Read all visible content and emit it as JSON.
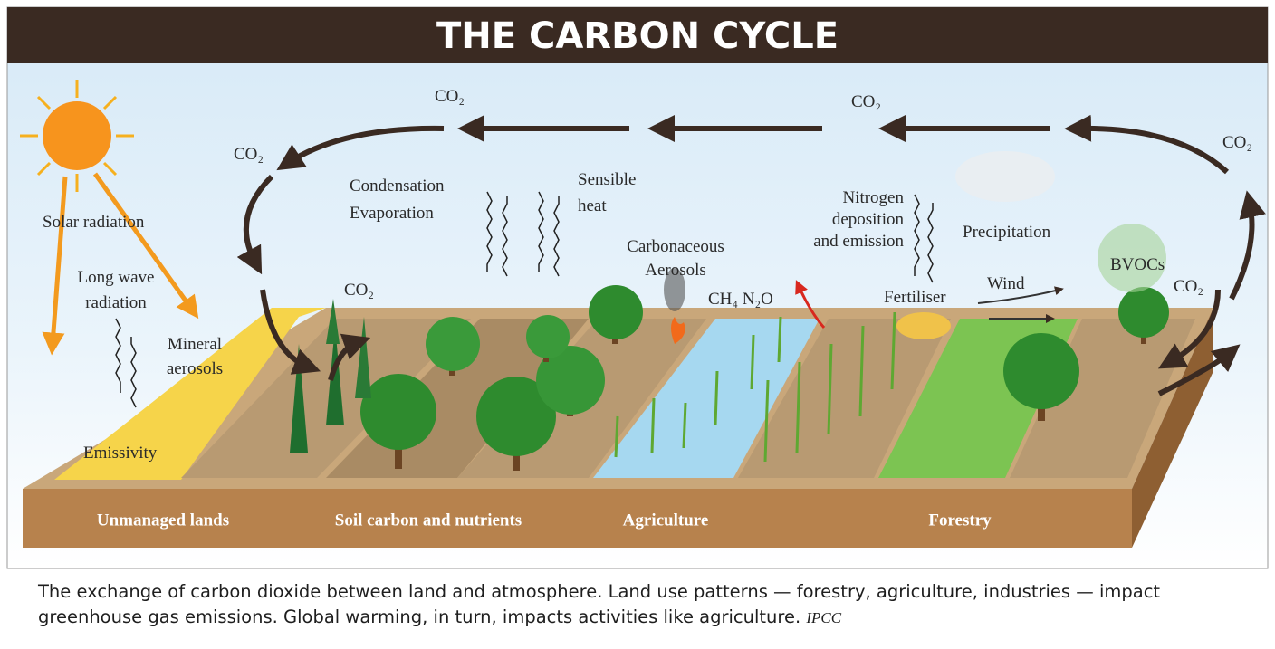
{
  "header": {
    "title": "THE CARBON CYCLE"
  },
  "labels": [
    {
      "lines": [
        "CO₂"
      ]
    },
    {
      "lines": [
        "CO₂"
      ]
    },
    {
      "lines": [
        "CO₂"
      ]
    },
    {
      "lines": [
        "CO₂"
      ]
    },
    {
      "lines": [
        "CO₂"
      ]
    },
    {
      "lines": [
        "CO₂"
      ]
    },
    {
      "lines": [
        "Solar radiation"
      ]
    },
    {
      "lines": [
        "Long wave",
        "radiation"
      ]
    },
    {
      "lines": [
        "Mineral",
        "aerosols"
      ]
    },
    {
      "lines": [
        "Emissivity"
      ]
    },
    {
      "lines": [
        "Condensation",
        "Evaporation"
      ]
    },
    {
      "lines": [
        "Sensible",
        "heat"
      ]
    },
    {
      "lines": [
        "Carbonaceous",
        "Aerosols"
      ]
    },
    {
      "lines": [
        "CH₄ N₂O"
      ]
    },
    {
      "lines": [
        "Nitrogen",
        "deposition",
        "and emission"
      ]
    },
    {
      "lines": [
        "Fertiliser"
      ]
    },
    {
      "lines": [
        "Precipitation"
      ]
    },
    {
      "lines": [
        "Wind"
      ]
    },
    {
      "lines": [
        "BVOCs"
      ]
    }
  ],
  "land_uses": [
    "Unmanaged lands",
    "Soil carbon and nutrients",
    "Agriculture",
    "Forestry"
  ],
  "caption": {
    "text": "The exchange of carbon dioxide between land and atmosphere. Land use patterns — forestry, agriculture, industries — impact greenhouse gas emissions. Global warming, in turn, impacts activities like agriculture.",
    "source": "IPCC"
  }
}
